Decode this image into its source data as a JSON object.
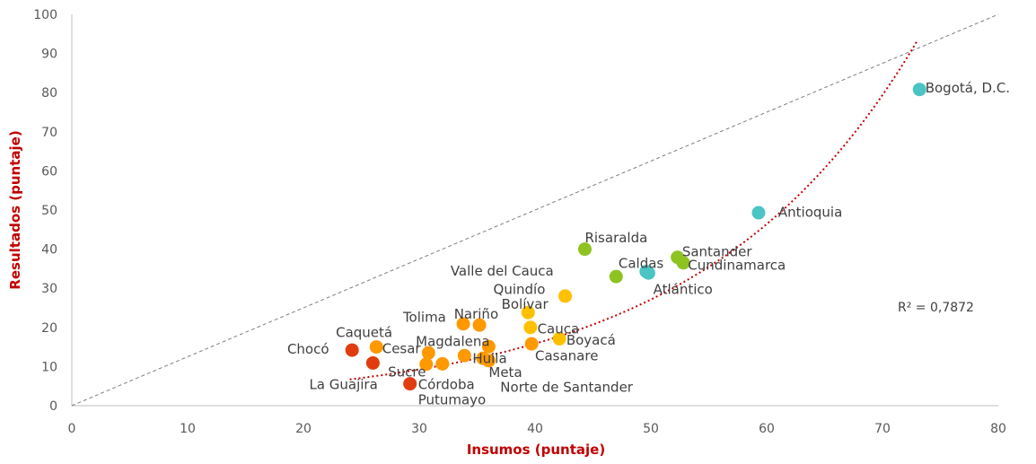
{
  "chart_data": {
    "type": "scatter",
    "xlabel": "Insumos (puntaje)",
    "ylabel": "Resultados (puntaje)",
    "xlim": [
      0,
      80
    ],
    "ylim": [
      0,
      100
    ],
    "xticks": [
      0,
      10,
      20,
      30,
      40,
      50,
      60,
      70,
      80
    ],
    "yticks": [
      0,
      10,
      20,
      30,
      40,
      50,
      60,
      70,
      80,
      90,
      100
    ],
    "grid": false,
    "legend": "none",
    "r2_label": "R² = 0,7872",
    "reference_line": {
      "type": "diagonal",
      "color": "#7f7f7f"
    },
    "trendline": {
      "type": "exponential",
      "color": "#c00000",
      "x_range": [
        24,
        73
      ],
      "a": 1.85,
      "b": 0.0537
    },
    "points": [
      {
        "name": "Bogotá, D.C.",
        "x": 73.2,
        "y": 80.8,
        "color": "#4bc4c4"
      },
      {
        "name": "Antioquia",
        "x": 59.3,
        "y": 49.3,
        "color": "#4bc4c4"
      },
      {
        "name": "Atlántico",
        "x": 49.6,
        "y": 34.3,
        "color": "#4bc4c4"
      },
      {
        "name": "Risaralda",
        "x": 44.3,
        "y": 40.0,
        "color": "#8ec321"
      },
      {
        "name": "Santander",
        "x": 52.3,
        "y": 37.9,
        "color": "#8ec321"
      },
      {
        "name": "Cundinamarca",
        "x": 52.8,
        "y": 36.5,
        "color": "#8ec321"
      },
      {
        "name": "Caldas",
        "x": 47.0,
        "y": 33.0,
        "color": "#8ec321"
      },
      {
        "name": "Valle del Cauca",
        "x": 49.8,
        "y": 33.9,
        "color": "#4bc4c4"
      },
      {
        "name": "Quindío",
        "x": 42.6,
        "y": 28.0,
        "color": "#ffc000"
      },
      {
        "name": "Bolívar",
        "x": 39.4,
        "y": 23.8,
        "color": "#ffc000"
      },
      {
        "name": "Cauca",
        "x": 39.6,
        "y": 20.0,
        "color": "#ffc000"
      },
      {
        "name": "Boyacá",
        "x": 42.1,
        "y": 17.1,
        "color": "#ffc000"
      },
      {
        "name": "Casanare",
        "x": 39.7,
        "y": 15.8,
        "color": "#ff9900"
      },
      {
        "name": "Tolima",
        "x": 33.8,
        "y": 20.9,
        "color": "#ff9900"
      },
      {
        "name": "Nariño",
        "x": 35.2,
        "y": 20.6,
        "color": "#ff9900"
      },
      {
        "name": "Magdalena",
        "x": 36.0,
        "y": 15.1,
        "color": "#ff9900"
      },
      {
        "name": "Huila",
        "x": 35.5,
        "y": 12.1,
        "color": "#ff9900"
      },
      {
        "name": "Meta",
        "x": 36.0,
        "y": 11.5,
        "color": "#ff9900"
      },
      {
        "name": "Norte de Santander",
        "x": 33.9,
        "y": 12.8,
        "color": "#ff9900"
      },
      {
        "name": "Putumayo",
        "x": 32.0,
        "y": 10.7,
        "color": "#ff9900"
      },
      {
        "name": "Sucre",
        "x": 30.6,
        "y": 10.6,
        "color": "#ff9900"
      },
      {
        "name": "Cesar",
        "x": 30.8,
        "y": 13.5,
        "color": "#ff9900"
      },
      {
        "name": "Caquetá",
        "x": 26.3,
        "y": 15.0,
        "color": "#ff9900"
      },
      {
        "name": "Chocó",
        "x": 24.2,
        "y": 14.2,
        "color": "#e03c10"
      },
      {
        "name": "La Guajira",
        "x": 26.0,
        "y": 10.9,
        "color": "#e03c10"
      },
      {
        "name": "Córdoba",
        "x": 29.2,
        "y": 5.6,
        "color": "#e03c10"
      }
    ],
    "labels": [
      {
        "text": "Bogotá, D.C.",
        "x": 73.7,
        "y": 80.0
      },
      {
        "text": "Antioquia",
        "x": 61.0,
        "y": 48.3
      },
      {
        "text": "Risaralda",
        "x": 44.3,
        "y": 41.8
      },
      {
        "text": "Santander",
        "x": 52.7,
        "y": 38.2
      },
      {
        "text": "Caldas",
        "x": 47.2,
        "y": 35.2
      },
      {
        "text": "Cundinamarca",
        "x": 53.2,
        "y": 34.8
      },
      {
        "text": "Valle del Cauca",
        "x": 32.7,
        "y": 33.3
      },
      {
        "text": "Atlántico",
        "x": 50.2,
        "y": 28.5
      },
      {
        "text": "Quindío",
        "x": 36.4,
        "y": 28.6
      },
      {
        "text": "Bolívar",
        "x": 37.1,
        "y": 24.8
      },
      {
        "text": "Tolima",
        "x": 28.6,
        "y": 21.4
      },
      {
        "text": "Nariño",
        "x": 33.0,
        "y": 22.3
      },
      {
        "text": "Cauca",
        "x": 40.2,
        "y": 18.5
      },
      {
        "text": "Caquetá",
        "x": 22.8,
        "y": 17.6
      },
      {
        "text": "Magdalena",
        "x": 29.7,
        "y": 15.2
      },
      {
        "text": "Boyacá",
        "x": 42.7,
        "y": 15.6
      },
      {
        "text": "Chocó",
        "x": 18.6,
        "y": 13.3
      },
      {
        "text": "Cesar",
        "x": 26.8,
        "y": 13.4
      },
      {
        "text": "Casanare",
        "x": 40.0,
        "y": 11.6
      },
      {
        "text": "Huila",
        "x": 34.6,
        "y": 10.9
      },
      {
        "text": "Sucre",
        "x": 27.3,
        "y": 7.4
      },
      {
        "text": "Meta",
        "x": 36.0,
        "y": 7.3
      },
      {
        "text": "La Guajira",
        "x": 20.5,
        "y": 4.3
      },
      {
        "text": "Córdoba",
        "x": 29.9,
        "y": 4.3
      },
      {
        "text": "Norte de Santander",
        "x": 37.0,
        "y": 3.5
      },
      {
        "text": "Putumayo",
        "x": 29.9,
        "y": 0.4
      }
    ]
  }
}
